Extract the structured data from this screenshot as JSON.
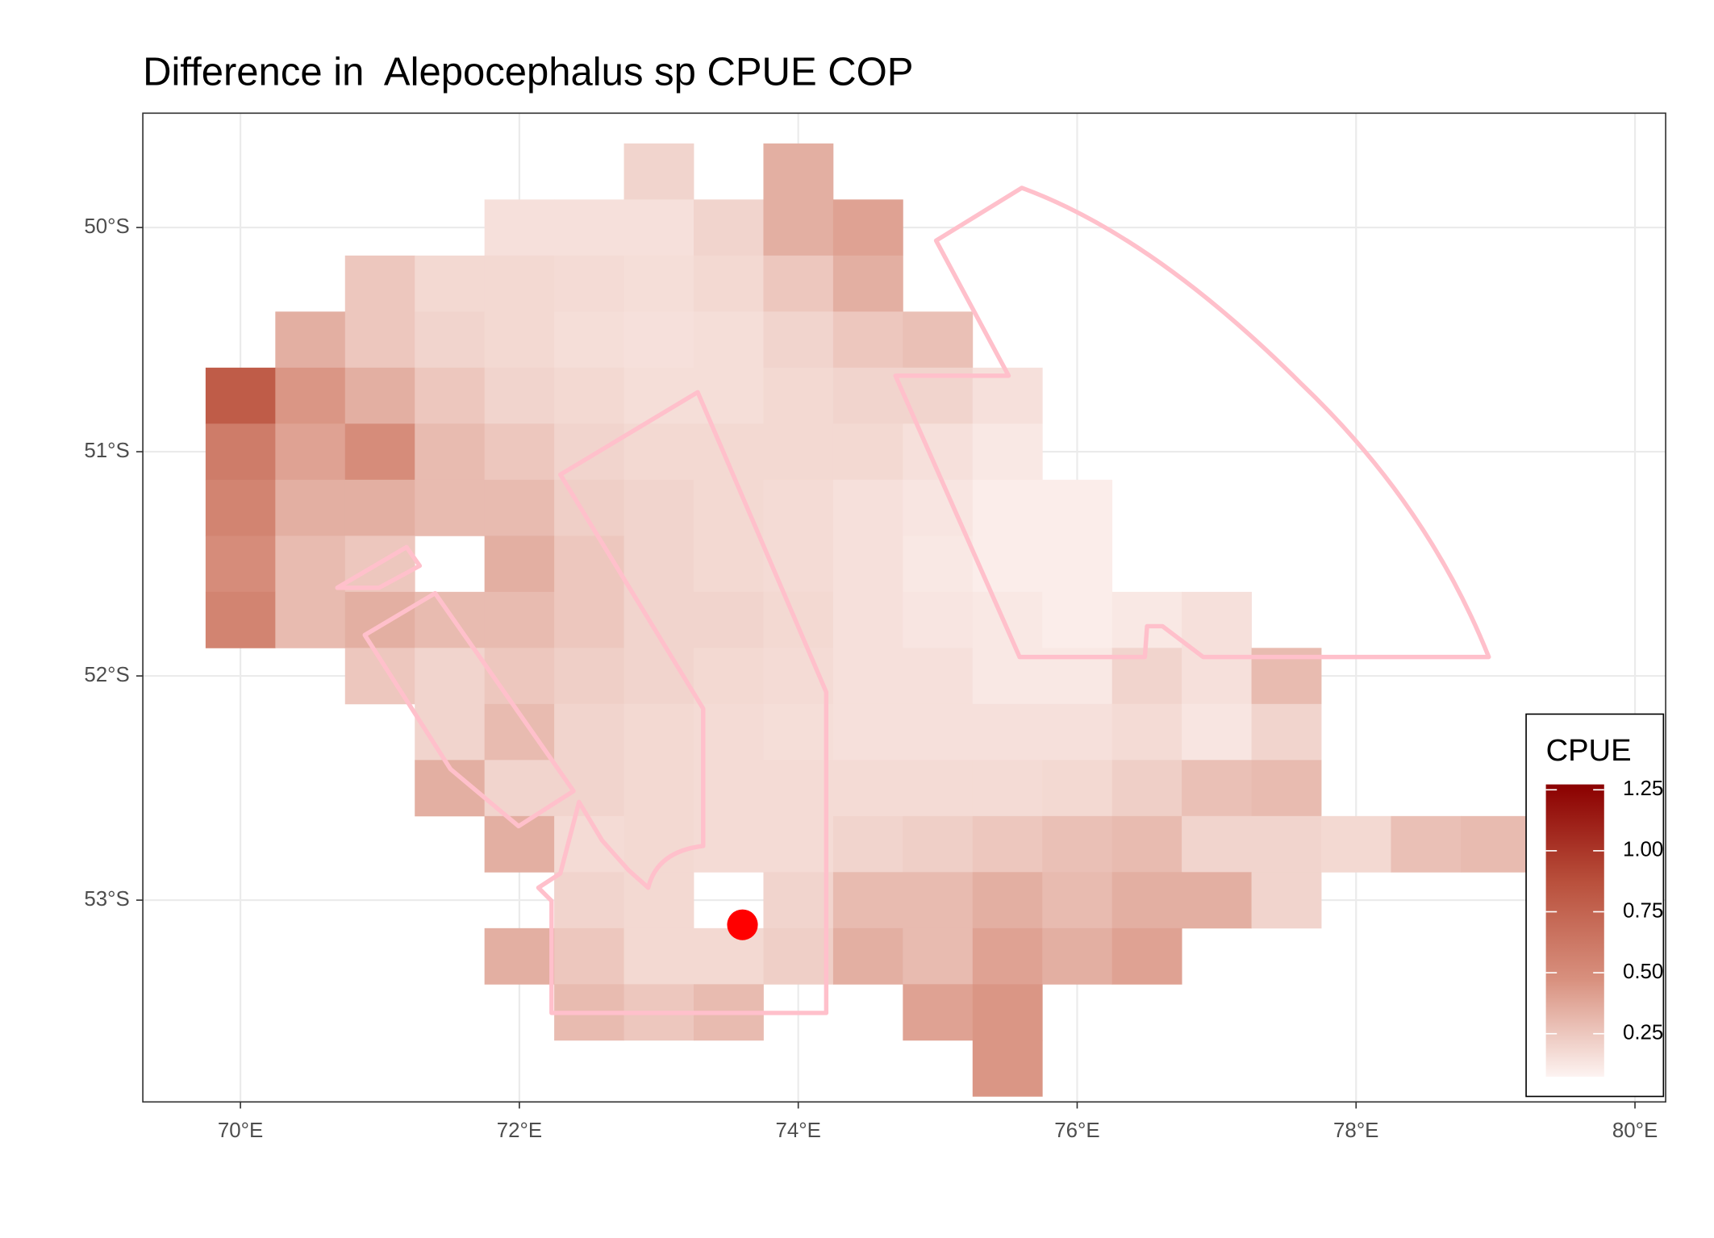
{
  "chart_data": {
    "type": "raster",
    "title": "Difference in  Alepocephalus sp CPUE COP",
    "xlim": [
      69.3,
      80.22
    ],
    "ylim": [
      -53.9,
      -49.49
    ],
    "xticks": [
      {
        "value": 70,
        "label": "70°E"
      },
      {
        "value": 72,
        "label": "72°E"
      },
      {
        "value": 74,
        "label": "74°E"
      },
      {
        "value": 76,
        "label": "76°E"
      },
      {
        "value": 78,
        "label": "78°E"
      },
      {
        "value": 80,
        "label": "80°E"
      }
    ],
    "yticks": [
      {
        "value": -50,
        "label": "50°S"
      },
      {
        "value": -51,
        "label": "51°S"
      },
      {
        "value": -52,
        "label": "52°S"
      },
      {
        "value": -53,
        "label": "53°S"
      }
    ],
    "grid": true,
    "lon": [
      70,
      70.5,
      71,
      71.5,
      72,
      72.5,
      73,
      73.5,
      74,
      74.5,
      75,
      75.5,
      76,
      76.5,
      77,
      77.5,
      78,
      78.5,
      79
    ],
    "lat": [
      -49.75,
      -50,
      -50.25,
      -50.5,
      -50.75,
      -51,
      -51.25,
      -51.5,
      -51.75,
      -52,
      -52.25,
      -52.5,
      -52.75,
      -53,
      -53.25,
      -53.5,
      -53.75
    ],
    "z": [
      [
        null,
        null,
        null,
        null,
        null,
        null,
        0.2,
        null,
        0.35,
        null,
        null,
        null,
        null,
        null,
        null,
        null,
        null,
        null,
        null
      ],
      [
        null,
        null,
        null,
        null,
        0.15,
        0.15,
        0.15,
        0.2,
        0.35,
        0.4,
        null,
        null,
        null,
        null,
        null,
        null,
        null,
        null,
        null
      ],
      [
        null,
        null,
        0.25,
        0.18,
        0.18,
        0.17,
        0.16,
        0.18,
        0.25,
        0.35,
        null,
        null,
        null,
        null,
        null,
        null,
        null,
        null,
        null
      ],
      [
        null,
        0.35,
        0.25,
        0.2,
        0.18,
        0.16,
        0.15,
        0.16,
        0.2,
        0.25,
        0.28,
        null,
        null,
        null,
        null,
        null,
        null,
        null,
        null
      ],
      [
        0.8,
        0.45,
        0.35,
        0.25,
        0.2,
        0.18,
        0.16,
        0.16,
        0.18,
        0.2,
        0.2,
        0.15,
        null,
        null,
        null,
        null,
        null,
        null,
        null
      ],
      [
        0.6,
        0.4,
        0.5,
        0.3,
        0.25,
        0.2,
        0.18,
        0.18,
        0.18,
        0.18,
        0.15,
        0.12,
        null,
        null,
        null,
        null,
        null,
        null,
        null
      ],
      [
        0.55,
        0.35,
        0.35,
        0.3,
        0.3,
        0.22,
        0.2,
        0.18,
        0.17,
        0.15,
        0.13,
        0.1,
        0.1,
        null,
        null,
        null,
        null,
        null,
        null
      ],
      [
        0.5,
        0.3,
        0.25,
        null,
        0.35,
        0.25,
        0.2,
        0.18,
        0.17,
        0.15,
        0.12,
        0.1,
        0.1,
        null,
        null,
        null,
        null,
        null,
        null
      ],
      [
        0.55,
        0.3,
        0.35,
        0.3,
        0.3,
        0.25,
        0.2,
        0.2,
        0.18,
        0.15,
        0.13,
        0.12,
        0.1,
        0.12,
        0.15,
        null,
        null,
        null,
        null
      ],
      [
        null,
        null,
        0.25,
        0.2,
        0.25,
        0.22,
        0.2,
        0.18,
        0.17,
        0.15,
        0.15,
        0.12,
        0.12,
        0.2,
        0.15,
        0.3,
        null,
        null,
        null
      ],
      [
        null,
        null,
        null,
        0.2,
        0.3,
        0.2,
        0.18,
        0.17,
        0.16,
        0.15,
        0.15,
        0.15,
        0.15,
        0.17,
        0.13,
        0.2,
        null,
        null,
        null
      ],
      [
        null,
        null,
        null,
        0.35,
        0.2,
        0.2,
        0.18,
        0.17,
        0.17,
        0.17,
        0.17,
        0.17,
        0.18,
        0.22,
        0.28,
        0.3,
        null,
        null,
        null
      ],
      [
        null,
        null,
        null,
        null,
        0.35,
        0.17,
        0.18,
        0.17,
        0.17,
        0.2,
        0.22,
        0.25,
        0.28,
        0.3,
        0.2,
        0.2,
        0.18,
        0.28,
        0.3
      ],
      [
        null,
        null,
        null,
        null,
        null,
        0.2,
        0.18,
        null,
        0.2,
        0.3,
        0.3,
        0.35,
        0.3,
        0.35,
        0.35,
        0.2,
        null,
        null,
        null
      ],
      [
        null,
        null,
        null,
        null,
        0.35,
        0.25,
        0.18,
        0.18,
        0.22,
        0.35,
        0.3,
        0.4,
        0.35,
        0.4,
        null,
        null,
        null,
        null,
        null
      ],
      [
        null,
        null,
        null,
        null,
        null,
        0.3,
        0.25,
        0.3,
        null,
        null,
        0.4,
        0.45,
        null,
        null,
        null,
        null,
        null,
        null,
        null
      ],
      [
        null,
        null,
        null,
        null,
        null,
        null,
        null,
        null,
        null,
        null,
        null,
        0.45,
        null,
        null,
        null,
        null,
        null,
        null,
        null
      ]
    ],
    "colors": [
      "#fdf3f1",
      "#d8907e",
      "#b9503c",
      "#8b0000"
    ],
    "fill_lim": [
      0.074,
      1.272
    ],
    "legend": {
      "title": "CPUE",
      "ticks": [
        0.25,
        {
          "value": 0.5,
          "label": "0.50"
        },
        0.75,
        {
          "value": 1,
          "label": "1.00"
        },
        1.25
      ]
    },
    "point": {
      "x": 73.6,
      "y": -53.11,
      "color": "#ff0000"
    }
  }
}
